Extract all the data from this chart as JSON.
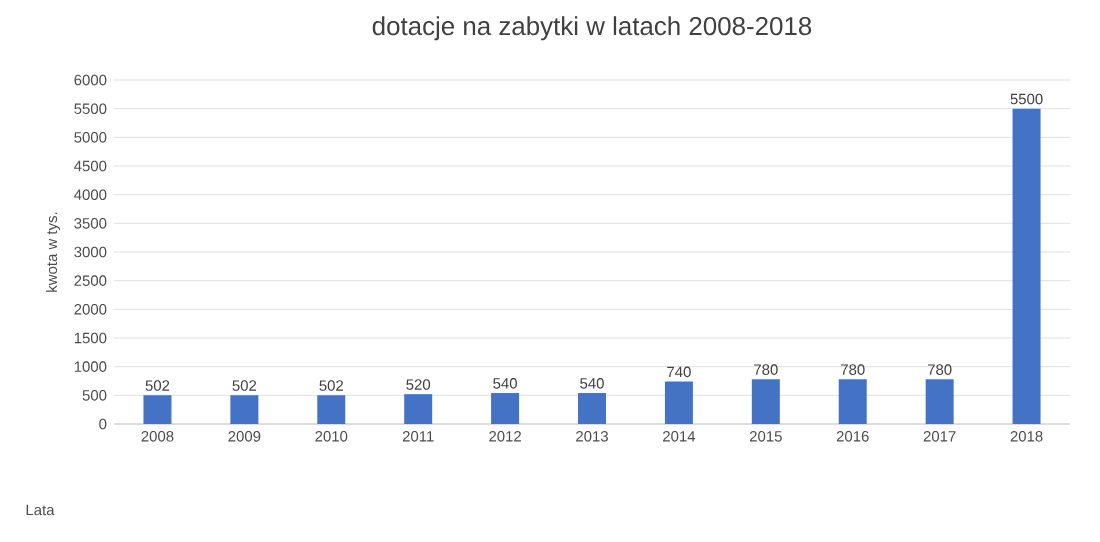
{
  "chart_data": {
    "type": "bar",
    "title": "dotacje na zabytki w latach 2008-2018",
    "xlabel": "Lata",
    "ylabel": "kwota w tys.",
    "categories": [
      "2008",
      "2009",
      "2010",
      "2011",
      "2012",
      "2013",
      "2014",
      "2015",
      "2016",
      "2017",
      "2018"
    ],
    "values": [
      502,
      502,
      502,
      520,
      540,
      540,
      740,
      780,
      780,
      780,
      5500
    ],
    "color": "#4472c4",
    "ylim": [
      0,
      6000
    ],
    "yticks": [
      0,
      500,
      1000,
      1500,
      2000,
      2500,
      3000,
      3500,
      4000,
      4500,
      5000,
      5500,
      6000
    ],
    "grid": "y",
    "data_labels": true
  }
}
